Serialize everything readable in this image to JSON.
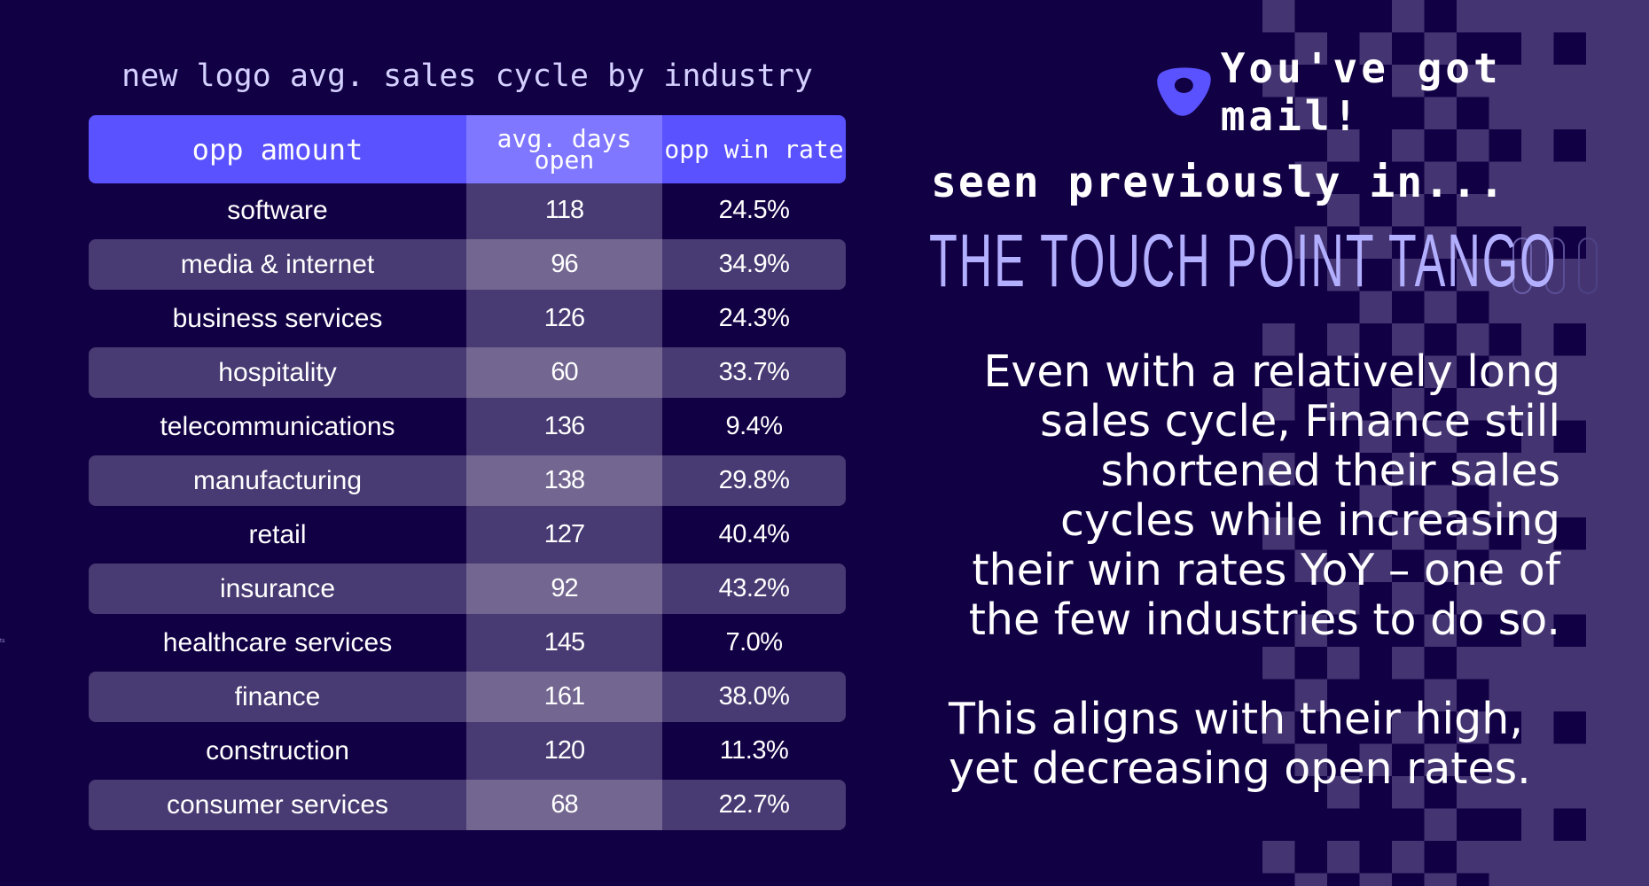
{
  "table": {
    "title": "new logo avg. sales cycle by industry",
    "headers": [
      "opp amount",
      "avg. days open",
      "opp win rate"
    ],
    "rows": [
      {
        "industry": "software",
        "avg_days_open": "118",
        "opp_win_rate": "24.5%"
      },
      {
        "industry": "media & internet",
        "avg_days_open": "96",
        "opp_win_rate": "34.9%"
      },
      {
        "industry": "business services",
        "avg_days_open": "126",
        "opp_win_rate": "24.3%"
      },
      {
        "industry": "hospitality",
        "avg_days_open": "60",
        "opp_win_rate": "33.7%"
      },
      {
        "industry": "telecommunications",
        "avg_days_open": "136",
        "opp_win_rate": "9.4%"
      },
      {
        "industry": "manufacturing",
        "avg_days_open": "138",
        "opp_win_rate": "29.8%"
      },
      {
        "industry": "retail",
        "avg_days_open": "127",
        "opp_win_rate": "40.4%"
      },
      {
        "industry": "insurance",
        "avg_days_open": "92",
        "opp_win_rate": "43.2%"
      },
      {
        "industry": "healthcare services",
        "avg_days_open": "145",
        "opp_win_rate": "7.0%"
      },
      {
        "industry": "finance",
        "avg_days_open": "161",
        "opp_win_rate": "38.0%"
      },
      {
        "industry": "construction",
        "avg_days_open": "120",
        "opp_win_rate": "11.3%"
      },
      {
        "industry": "consumer services",
        "avg_days_open": "68",
        "opp_win_rate": "22.7%"
      }
    ]
  },
  "brand": {
    "logo_icon": "outreach-logo-icon",
    "tagline": "You've got mail!"
  },
  "callout": {
    "seen_label": "seen previously in...",
    "series_name": "THE TOUCH POINT TANGO",
    "paragraph_1": "Even with a relatively long sales cycle, Finance still shortened their sales cycles while increasing their win rates YoY – one of the few industries to do so.",
    "paragraph_1_lines": [
      "Even with a relatively long",
      "sales cycle, Finance still",
      "shortened their sales",
      "cycles while increasing",
      "their win rates YoY – one of",
      "the few industries to do so."
    ],
    "paragraph_2_lines": [
      "This aligns with their high,",
      "yet decreasing open rates."
    ]
  },
  "colors": {
    "background": "#120044",
    "header_accent": "#5a52ff",
    "header_accent_light": "#7f77ff",
    "band": "#483a72",
    "series_title": "#b3afff"
  },
  "tiny_mark": "ts"
}
